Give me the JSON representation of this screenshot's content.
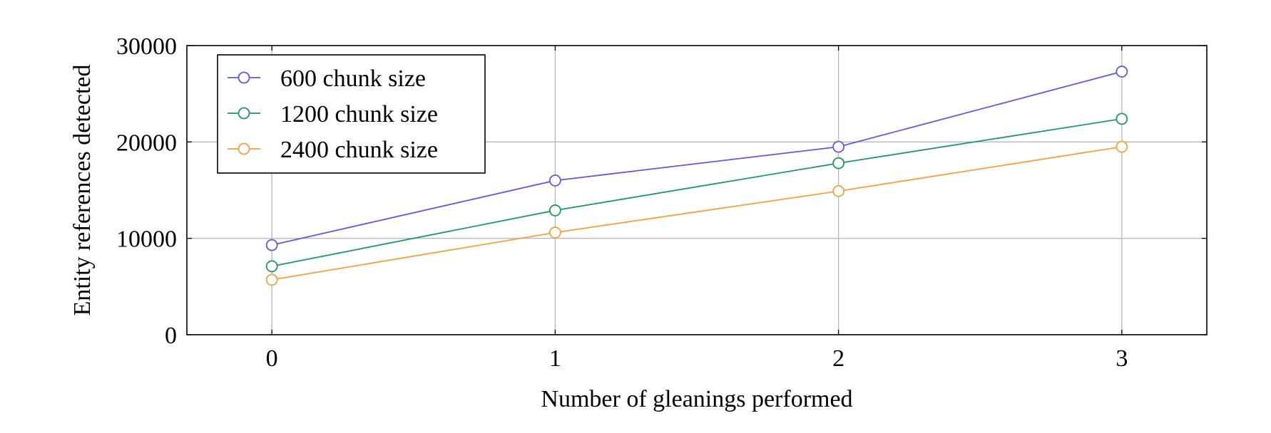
{
  "chart_data": {
    "type": "line",
    "title": "",
    "xlabel": "Number of gleanings performed",
    "ylabel": "Entity references detected",
    "x": [
      0,
      1,
      2,
      3
    ],
    "x_tick_labels": [
      "0",
      "1",
      "2",
      "3"
    ],
    "xlim": [
      -0.3,
      3.3
    ],
    "ylim": [
      0,
      30000
    ],
    "y_ticks": [
      0,
      10000,
      20000,
      30000
    ],
    "y_tick_labels": [
      "0",
      "10000",
      "20000",
      "30000"
    ],
    "grid": true,
    "legend_position": "top-left",
    "marker": "open-circle",
    "series": [
      {
        "name": "600 chunk size",
        "color": "#5a5ae6",
        "values": [
          9300,
          16000,
          19500,
          27300
        ]
      },
      {
        "name": "1200 chunk size",
        "color": "#1f9a5a",
        "values": [
          7100,
          12900,
          17800,
          22400
        ]
      },
      {
        "name": "2400 chunk size",
        "color": "#f5a03c",
        "values": [
          5700,
          10600,
          14900,
          19500
        ]
      }
    ]
  }
}
